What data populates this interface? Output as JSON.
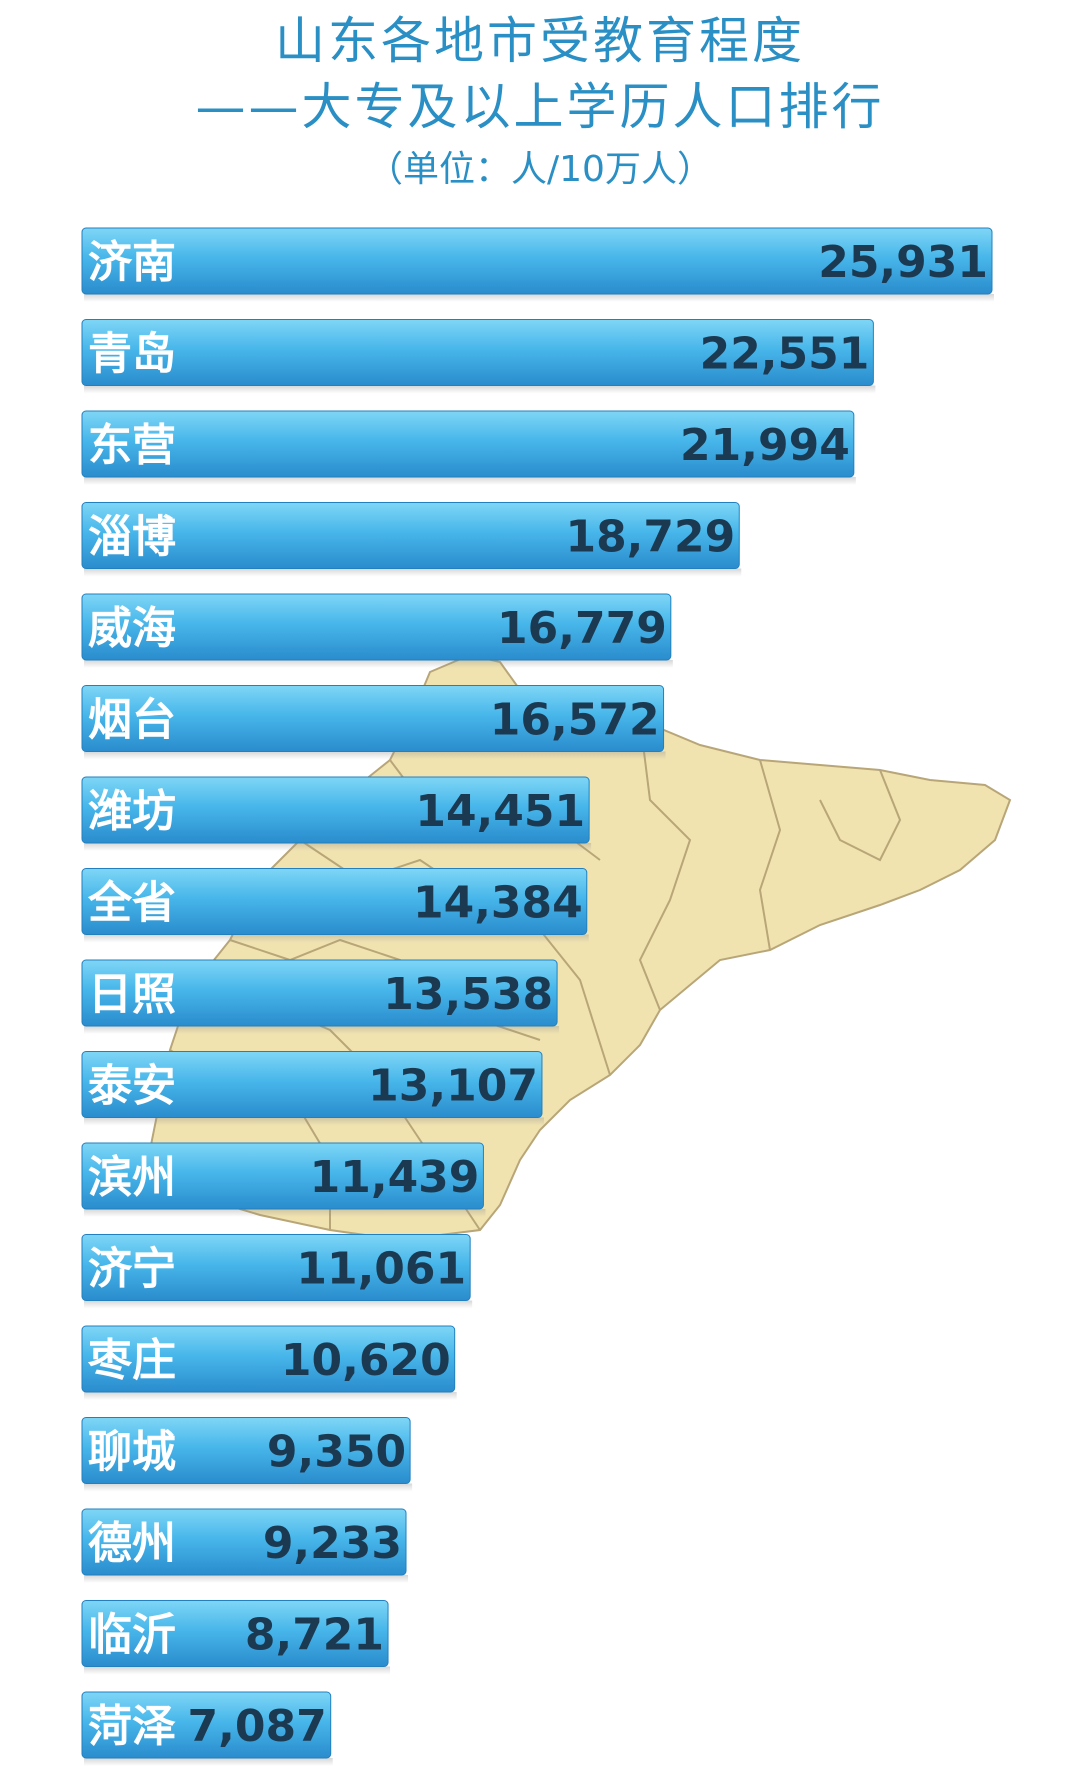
{
  "title": "山东各地市受教育程度",
  "subtitle": "——大专及以上学历人口排行",
  "unit": "（单位：人/10万人）",
  "colors": {
    "title": "#2a8fc4",
    "bar_top": "#5ec9f2",
    "bar_bottom": "#2b8fd0",
    "map_fill": "#f1e3b0",
    "map_stroke": "#b8a678",
    "value_text": "#1b3a52"
  },
  "chart_data": {
    "type": "bar",
    "orientation": "horizontal",
    "title": "山东各地市受教育程度",
    "subtitle": "——大专及以上学历人口排行",
    "unit": "（单位：人/10万人）",
    "categories": [
      "济南",
      "青岛",
      "东营",
      "淄博",
      "威海",
      "烟台",
      "潍坊",
      "全省",
      "日照",
      "泰安",
      "滨州",
      "济宁",
      "枣庄",
      "聊城",
      "德州",
      "临沂",
      "菏泽"
    ],
    "values": [
      25931,
      22551,
      21994,
      18729,
      16779,
      16572,
      14451,
      14384,
      13538,
      13107,
      11439,
      11061,
      10620,
      9350,
      9233,
      8721,
      7087
    ],
    "value_labels": [
      "25,931",
      "22,551",
      "21,994",
      "18,729",
      "16,779",
      "16,572",
      "14,451",
      "14,384",
      "13,538",
      "13,107",
      "11,439",
      "11,061",
      "10,620",
      "9,350",
      "9,233",
      "8,721",
      "7,087"
    ],
    "legend": "none",
    "grid": false
  }
}
